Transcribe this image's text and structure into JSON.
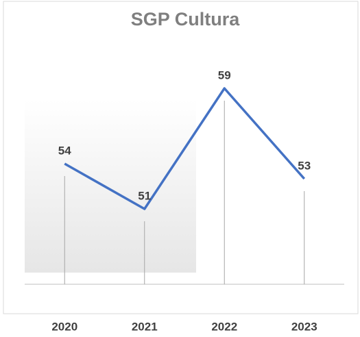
{
  "chart_data": {
    "type": "line",
    "title": "SGP Cultura",
    "categories": [
      "2020",
      "2021",
      "2022",
      "2023"
    ],
    "values": [
      54,
      51,
      59,
      53
    ],
    "color": "#4472c4",
    "ylim": [
      46,
      62
    ],
    "drop_lines": true
  }
}
